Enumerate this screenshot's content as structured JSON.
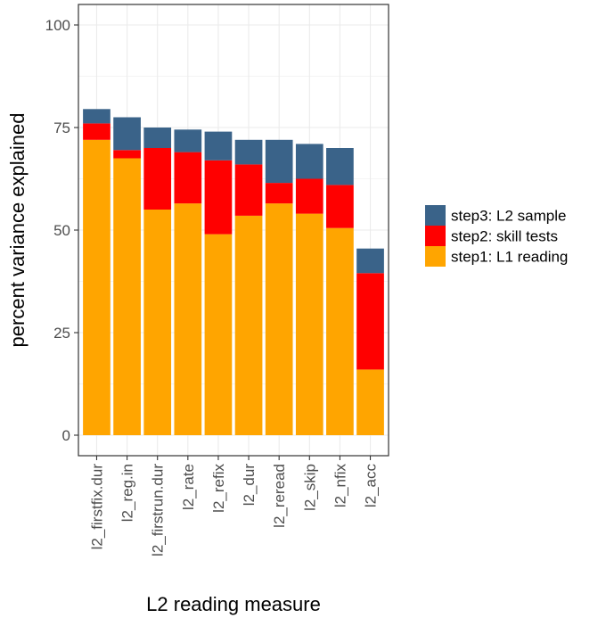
{
  "chart_data": {
    "type": "bar",
    "stacked": true,
    "xlabel": "L2 reading measure",
    "ylabel": "percent variance explained",
    "ylim": [
      0,
      100
    ],
    "yticks": [
      0,
      25,
      50,
      75,
      100
    ],
    "grid": true,
    "legend_position": "right",
    "categories": [
      "l2_firstfix.dur",
      "l2_reg.in",
      "l2_firstrun.dur",
      "l2_rate",
      "l2_refix",
      "l2_dur",
      "l2_reread",
      "l2_skip",
      "l2_nfix",
      "l2_acc"
    ],
    "series": [
      {
        "name": "step1: L1 reading",
        "color": "#FFA500",
        "values": [
          72.0,
          67.5,
          55.0,
          56.5,
          49.0,
          53.5,
          56.5,
          54.0,
          50.5,
          16.0
        ]
      },
      {
        "name": "step2: skill tests",
        "color": "#FF0000",
        "values": [
          4.0,
          2.0,
          15.0,
          12.5,
          18.0,
          12.5,
          5.0,
          8.5,
          10.5,
          23.5
        ]
      },
      {
        "name": "step3: L2 sample",
        "color": "#3A6389",
        "values": [
          3.5,
          8.0,
          5.0,
          5.5,
          7.0,
          6.0,
          10.5,
          8.5,
          9.0,
          6.0
        ]
      }
    ],
    "legend_order": [
      "step3: L2 sample",
      "step2: skill tests",
      "step1: L1 reading"
    ]
  }
}
